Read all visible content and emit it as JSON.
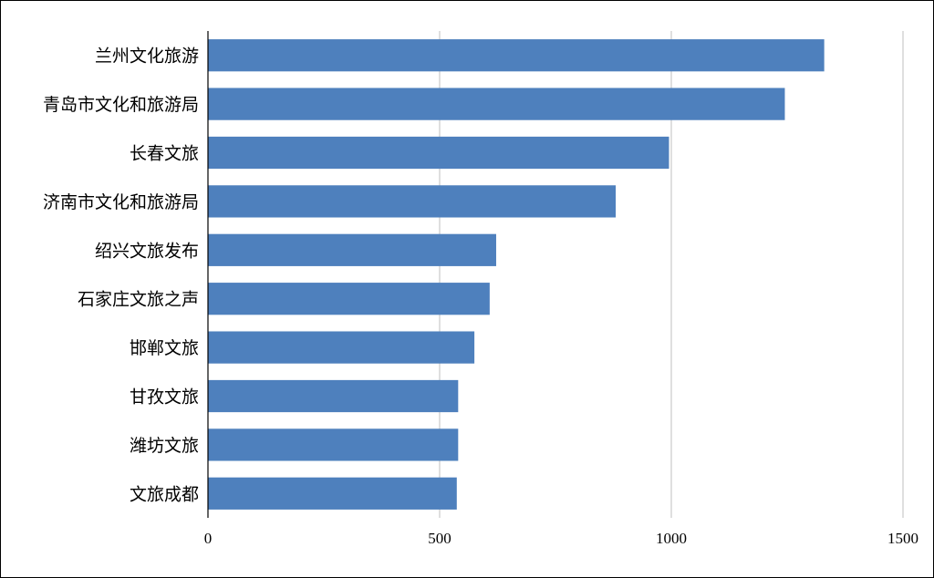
{
  "chart_data": {
    "type": "bar",
    "orientation": "horizontal",
    "categories": [
      "兰州文化旅游",
      "青岛市文化和旅游局",
      "长春文旅",
      "济南市文化和旅游局",
      "绍兴文旅发布",
      "石家庄文旅之声",
      "邯郸文旅",
      "甘孜文旅",
      "潍坊文旅",
      "文旅成都"
    ],
    "values": [
      1330,
      1245,
      995,
      880,
      622,
      608,
      575,
      540,
      540,
      537
    ],
    "title": "",
    "xlabel": "",
    "ylabel": "",
    "xlim": [
      0,
      1500
    ],
    "x_ticks": [
      "0",
      "500",
      "1000",
      "1500"
    ],
    "grid": "vertical",
    "legend": "none",
    "bar_color": "#4e80bd",
    "grid_color": "#bfbfbf"
  }
}
